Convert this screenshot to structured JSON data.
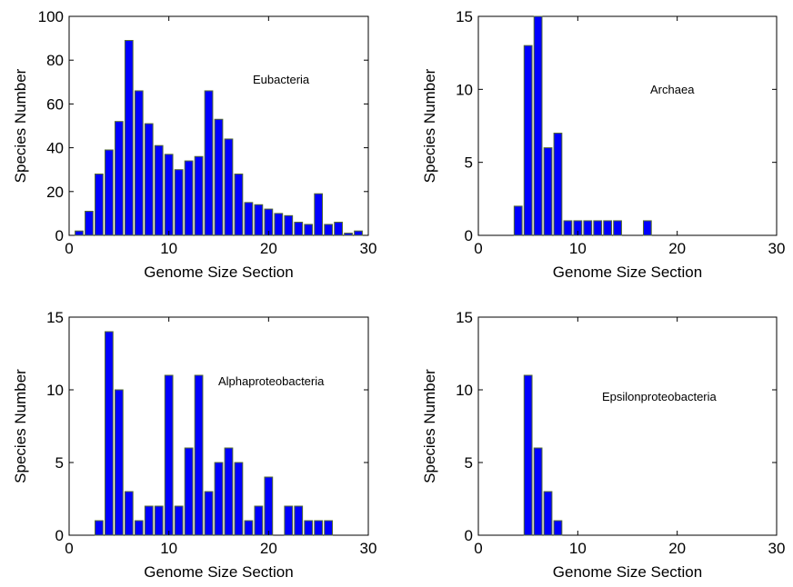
{
  "chart_data": [
    {
      "type": "bar",
      "title": "",
      "annotation": "Eubacteria",
      "xlabel": "Genome Size Section",
      "ylabel": "Species Number",
      "xlim": [
        0,
        30
      ],
      "ylim": [
        0,
        100
      ],
      "xticks": [
        0,
        10,
        20,
        30
      ],
      "yticks": [
        0,
        20,
        40,
        60,
        80,
        100
      ],
      "x": [
        1,
        2,
        3,
        4,
        5,
        6,
        7,
        8,
        9,
        10,
        11,
        12,
        13,
        14,
        15,
        16,
        17,
        18,
        19,
        20,
        21,
        22,
        23,
        24,
        25,
        26,
        27,
        28,
        29
      ],
      "values": [
        2,
        11,
        28,
        39,
        52,
        89,
        66,
        51,
        41,
        37,
        30,
        34,
        36,
        66,
        53,
        44,
        28,
        15,
        14,
        12,
        10,
        9,
        6,
        5,
        19,
        5,
        6,
        1,
        2
      ],
      "bar_color": "#0000ff",
      "edge_color": "#556b2f"
    },
    {
      "type": "bar",
      "title": "",
      "annotation": "Archaea",
      "xlabel": "Genome Size Section",
      "ylabel": "Species Number",
      "xlim": [
        0,
        30
      ],
      "ylim": [
        0,
        15
      ],
      "xticks": [
        0,
        10,
        20,
        30
      ],
      "yticks": [
        0,
        5,
        10,
        15
      ],
      "x": [
        4,
        5,
        6,
        7,
        8,
        9,
        10,
        11,
        12,
        13,
        14,
        15,
        16,
        17
      ],
      "values": [
        2,
        13,
        15,
        6,
        7,
        1,
        1,
        1,
        1,
        1,
        1,
        0,
        0,
        1
      ],
      "bar_color": "#0000ff",
      "edge_color": "#556b2f"
    },
    {
      "type": "bar",
      "title": "",
      "annotation": "Alphaproteobacteria",
      "xlabel": "Genome Size Section",
      "ylabel": "Species Number",
      "xlim": [
        0,
        30
      ],
      "ylim": [
        0,
        15
      ],
      "xticks": [
        0,
        10,
        20,
        30
      ],
      "yticks": [
        0,
        5,
        10,
        15
      ],
      "x": [
        3,
        4,
        5,
        6,
        7,
        8,
        9,
        10,
        11,
        12,
        13,
        14,
        15,
        16,
        17,
        18,
        19,
        20,
        21,
        22,
        23,
        24,
        25,
        26
      ],
      "values": [
        1,
        14,
        10,
        3,
        1,
        2,
        2,
        11,
        2,
        6,
        11,
        3,
        5,
        6,
        5,
        1,
        2,
        4,
        0,
        2,
        2,
        1,
        1,
        1
      ],
      "bar_color": "#0000ff",
      "edge_color": "#556b2f"
    },
    {
      "type": "bar",
      "title": "",
      "annotation": "Epsilonproteobacteria",
      "xlabel": "Genome Size Section",
      "ylabel": "Species Number",
      "xlim": [
        0,
        30
      ],
      "ylim": [
        0,
        15
      ],
      "xticks": [
        0,
        10,
        20,
        30
      ],
      "yticks": [
        0,
        5,
        10,
        15
      ],
      "x": [
        5,
        6,
        7,
        8
      ],
      "values": [
        11,
        6,
        3,
        1
      ],
      "bar_color": "#0000ff",
      "edge_color": "#556b2f"
    }
  ]
}
